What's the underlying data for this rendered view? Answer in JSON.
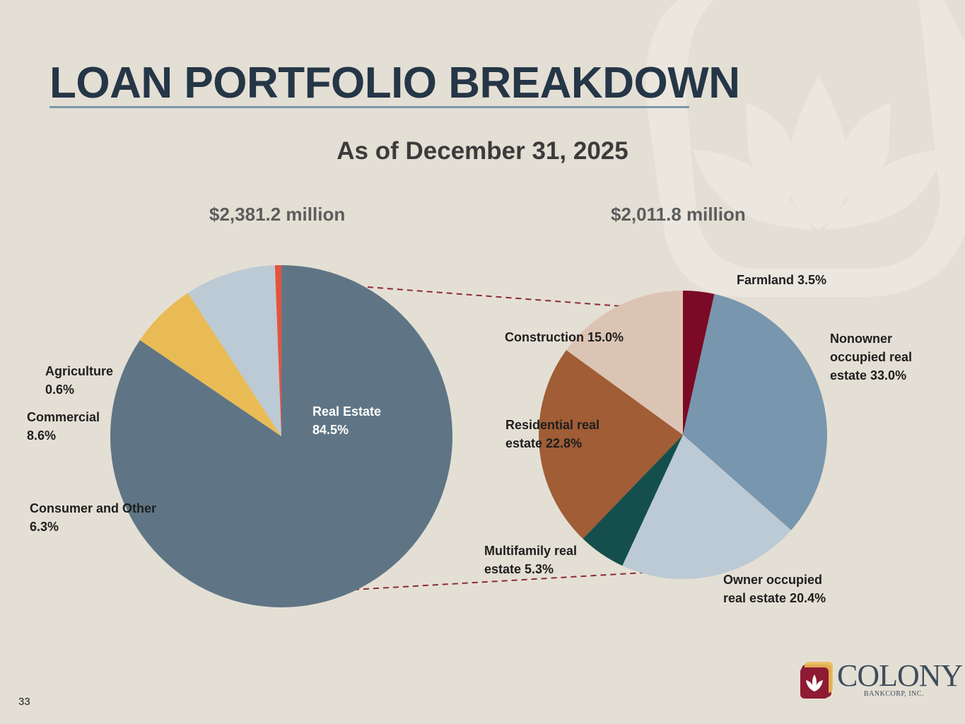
{
  "slide": {
    "title": "LOAN PORTFOLIO BREAKDOWN",
    "subtitle": "As of December 31, 2025",
    "page_number": "33"
  },
  "logo": {
    "name": "COLONY",
    "sub": "BANKCORP, INC."
  },
  "colors": {
    "title": "#253647",
    "connector": "#8b2a35"
  },
  "chart_data": [
    {
      "type": "pie",
      "title": "$2,381.2 million",
      "slices": [
        {
          "name": "Real Estate",
          "label": "Real Estate\n84.5%",
          "value": 84.5,
          "color": "#5f7585"
        },
        {
          "name": "Consumer and Other",
          "label": "Consumer and Other\n6.3%",
          "value": 6.3,
          "color": "#e9bb55"
        },
        {
          "name": "Commercial",
          "label": "Commercial\n8.6%",
          "value": 8.6,
          "color": "#bccad5"
        },
        {
          "name": "Agriculture",
          "label": "Agriculture\n0.6%",
          "value": 0.6,
          "color": "#e5533d"
        }
      ]
    },
    {
      "type": "pie",
      "title": "$2,011.8 million",
      "slices": [
        {
          "name": "Farmland",
          "label": "Farmland 3.5%",
          "value": 3.5,
          "color": "#7b0a26"
        },
        {
          "name": "Nonowner occupied real estate",
          "label": "Nonowner\noccupied real\nestate  33.0%",
          "value": 33.0,
          "color": "#7896ad"
        },
        {
          "name": "Owner occupied real estate",
          "label": "Owner occupied\nreal estate 20.4%",
          "value": 20.4,
          "color": "#bccad6"
        },
        {
          "name": "Multifamily real estate",
          "label": "Multifamily real\nestate 5.3%",
          "value": 5.3,
          "color": "#154f4d"
        },
        {
          "name": "Residential real estate",
          "label": "Residential real\nestate 22.8%",
          "value": 22.8,
          "color": "#a05d36"
        },
        {
          "name": "Construction",
          "label": "Construction 15.0%",
          "value": 15.0,
          "color": "#dcc4b4"
        }
      ]
    }
  ]
}
